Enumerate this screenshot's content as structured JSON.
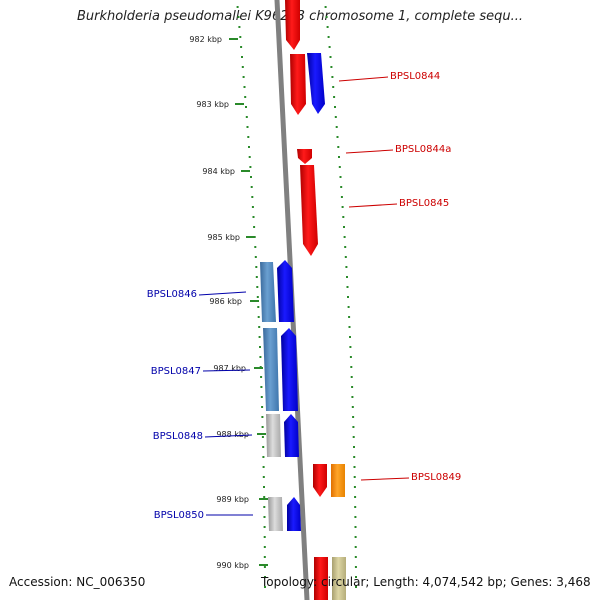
{
  "title": "Burkholderia pseudomallei K96243 chromosome 1, complete sequ...",
  "accession": "Accession: NC_006350",
  "summary": "Topology: circular; Length: 4,074,542 bp; Genes: 3,468",
  "colors": {
    "backbone": "#808080",
    "ticks": "#2a8a2a",
    "forward_label": "#cc0000",
    "reverse_label": "#0000aa",
    "red": "#ff0000",
    "blue": "#0000ff",
    "steel": "#4f86bd",
    "gray": "#bcbcbc",
    "orange": "#ff8c00",
    "khaki": "#c8c08a"
  },
  "scale": {
    "labels": [
      "982 kbp",
      "983 kbp",
      "984 kbp",
      "985 kbp",
      "986 kbp",
      "987 kbp",
      "988 kbp",
      "989 kbp",
      "990 kbp"
    ]
  },
  "genes": {
    "forward": [
      {
        "label": "BPSL0844",
        "segments": [
          {
            "strand": "reverse",
            "color": "red"
          },
          {
            "strand": "forward",
            "color": "blue"
          }
        ]
      },
      {
        "label": "BPSL0844a",
        "segments": [
          {
            "strand": "forward",
            "color": "red"
          }
        ]
      },
      {
        "label": "BPSL0845",
        "segments": [
          {
            "strand": "forward",
            "color": "red"
          }
        ]
      },
      {
        "label": "BPSL0849",
        "segments": [
          {
            "strand": "forward",
            "color": "red"
          },
          {
            "strand": "forward",
            "color": "orange"
          }
        ]
      }
    ],
    "reverse": [
      {
        "label": "BPSL0846",
        "segments": [
          {
            "strand": "reverse",
            "color": "steel"
          },
          {
            "strand": "reverse",
            "color": "blue"
          }
        ]
      },
      {
        "label": "BPSL0847",
        "segments": [
          {
            "strand": "reverse",
            "color": "steel"
          },
          {
            "strand": "reverse",
            "color": "blue"
          }
        ]
      },
      {
        "label": "BPSL0848",
        "segments": [
          {
            "strand": "reverse",
            "color": "gray"
          },
          {
            "strand": "reverse",
            "color": "blue"
          }
        ]
      },
      {
        "label": "BPSL0850",
        "segments": [
          {
            "strand": "reverse",
            "color": "gray"
          },
          {
            "strand": "reverse",
            "color": "blue"
          }
        ]
      }
    ]
  }
}
